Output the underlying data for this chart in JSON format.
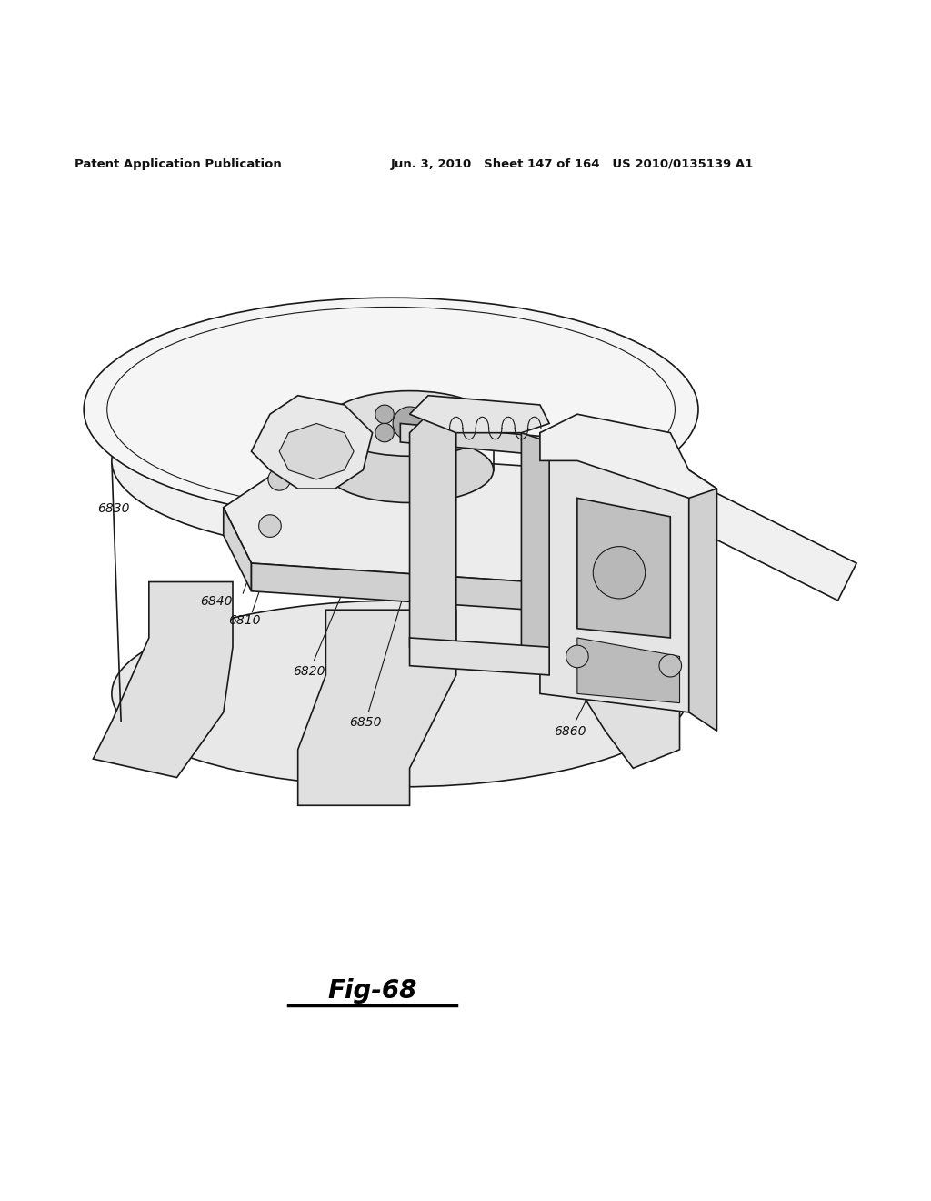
{
  "background_color": "#ffffff",
  "header_left": "Patent Application Publication",
  "header_mid": "Jun. 3, 2010   Sheet 147 of 164   US 2010/0135139 A1",
  "fig_caption": "Fig-68",
  "line_color": "#1a1a1a",
  "label_fontsize": 10,
  "header_fontsize": 9.5,
  "caption_fontsize": 20
}
